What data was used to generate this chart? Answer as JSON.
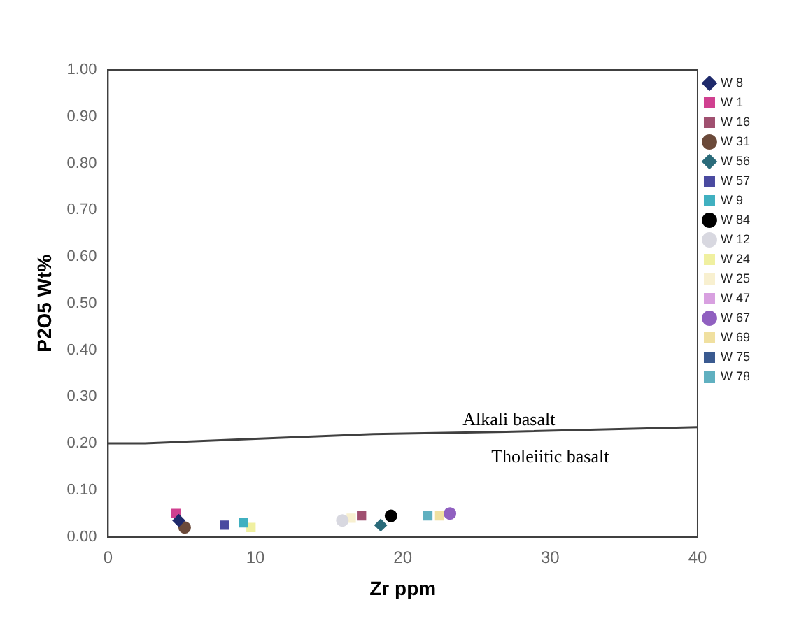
{
  "chart_data": {
    "type": "scatter",
    "xlabel": "Zr ppm",
    "ylabel": "P2O5 Wt%",
    "xlim": [
      0,
      40
    ],
    "xticks": [
      0,
      10,
      20,
      30,
      40
    ],
    "ylim": [
      0,
      1
    ],
    "yticks": [
      {
        "value": 0,
        "label": "0.00"
      },
      {
        "value": 0.1,
        "label": "0.10"
      },
      {
        "value": 0.2,
        "label": "0.20"
      },
      {
        "value": 0.3,
        "label": "0.30"
      },
      {
        "value": 0.4,
        "label": "0.40"
      },
      {
        "value": 0.5,
        "label": "0.50"
      },
      {
        "value": 0.6,
        "label": "0.60"
      },
      {
        "value": 0.7,
        "label": "0.70"
      },
      {
        "value": 0.8,
        "label": "0.80"
      },
      {
        "value": 0.9,
        "label": "0.90"
      },
      {
        "value": 1,
        "label": "1.00"
      }
    ],
    "grid": false,
    "legend": "right",
    "annotations": [
      "Alkali basalt",
      "Tholeiitic basalt"
    ],
    "series": [
      {
        "type": "line",
        "color": "#404040",
        "marker": "none",
        "x": [
          0,
          2.5,
          10,
          18,
          27,
          40
        ],
        "values": [
          0.2,
          0.2,
          0.21,
          0.22,
          0.225,
          0.235
        ]
      },
      {
        "name": "W 8",
        "color": "#1f2a6b",
        "marker": "diamond",
        "x": [
          4.8
        ],
        "values": [
          0.035
        ]
      },
      {
        "name": "W 1",
        "color": "#d04090",
        "marker": "square",
        "x": [
          4.6
        ],
        "values": [
          0.05
        ]
      },
      {
        "name": "W 16",
        "color": "#a05070",
        "marker": "square",
        "x": [
          17.2
        ],
        "values": [
          0.045
        ]
      },
      {
        "name": "W 31",
        "color": "#6b4a3a",
        "marker": "circle",
        "x": [
          5.2
        ],
        "values": [
          0.02
        ]
      },
      {
        "name": "W 56",
        "color": "#2a6b7a",
        "marker": "diamond",
        "x": [
          18.5
        ],
        "values": [
          0.025
        ]
      },
      {
        "name": "W 57",
        "color": "#4a4aa0",
        "marker": "square",
        "x": [
          7.9
        ],
        "values": [
          0.025
        ]
      },
      {
        "name": "W 9",
        "color": "#40b0c0",
        "marker": "square",
        "x": [
          9.2
        ],
        "values": [
          0.03
        ]
      },
      {
        "name": "W 84",
        "color": "#000000",
        "marker": "circle",
        "x": [
          19.2
        ],
        "values": [
          0.045
        ]
      },
      {
        "name": "W 12",
        "color": "#d8d8e0",
        "marker": "circle",
        "x": [
          15.9
        ],
        "values": [
          0.035
        ]
      },
      {
        "name": "W 24",
        "color": "#f0f0a0",
        "marker": "square",
        "x": [
          9.7
        ],
        "values": [
          0.02
        ]
      },
      {
        "name": "W 25",
        "color": "#f8f0d0",
        "marker": "square",
        "x": [
          16.5
        ],
        "values": [
          0.04
        ]
      },
      {
        "name": "W 47",
        "color": "#d8a0e0",
        "marker": "square",
        "x": [
          null
        ],
        "values": [
          null
        ]
      },
      {
        "name": "W 67",
        "color": "#9060c0",
        "marker": "circle",
        "x": [
          23.2
        ],
        "values": [
          0.05
        ]
      },
      {
        "name": "W 69",
        "color": "#f0e0a0",
        "marker": "square",
        "x": [
          22.5
        ],
        "values": [
          0.045
        ]
      },
      {
        "name": "W 75",
        "color": "#3a5a90",
        "marker": "square",
        "x": [
          null
        ],
        "values": [
          null
        ]
      },
      {
        "name": "W 78",
        "color": "#60b0c0",
        "marker": "square",
        "x": [
          21.7
        ],
        "values": [
          0.045
        ]
      }
    ]
  }
}
